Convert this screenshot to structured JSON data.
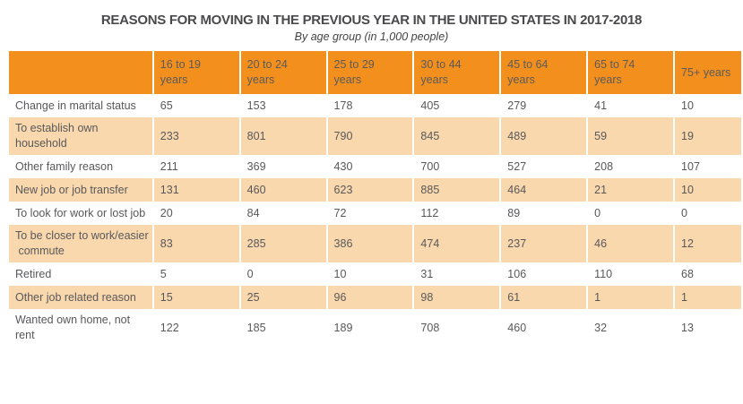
{
  "header": {
    "title": "REASONS FOR MOVING IN THE PREVIOUS YEAR IN THE UNITED STATES IN 2017-2018",
    "subtitle": "By age group (in 1,000 people)"
  },
  "colors": {
    "header_bg": "#f3901d",
    "row_alt_bg": "#fad8ad",
    "row_bg": "#ffffff",
    "text": "#58585b",
    "header_text": "#5a5a5c",
    "title": "#4a4a4c",
    "subtitle": "#434345"
  },
  "table": {
    "columns": [
      "",
      "16 to 19\nyears",
      "20 to 24\nyears",
      "25 to 29\nyears",
      "30 to 44\nyears",
      "45 to 64\nyears",
      "65 to 74\nyears",
      "75+ years"
    ],
    "rows": [
      {
        "label": "Change in marital status",
        "values": [
          "65",
          "153",
          "178",
          "405",
          "279",
          "41",
          "10"
        ]
      },
      {
        "label": "To establish own\nhousehold",
        "values": [
          "233",
          "801",
          "790",
          "845",
          "489",
          "59",
          "19"
        ]
      },
      {
        "label": "Other family reason",
        "values": [
          "211",
          "369",
          "430",
          "700",
          "527",
          "208",
          "107"
        ]
      },
      {
        "label": "New job or job transfer",
        "values": [
          "131",
          "460",
          "623",
          "885",
          "464",
          "21",
          "10"
        ]
      },
      {
        "label": "To look for work or lost job",
        "values": [
          "20",
          "84",
          "72",
          "112",
          "89",
          "0",
          "0"
        ]
      },
      {
        "label": "To be closer to work/easier\n commute",
        "values": [
          "83",
          "285",
          "386",
          "474",
          "237",
          "46",
          "12"
        ]
      },
      {
        "label": "Retired",
        "values": [
          "5",
          "0",
          "10",
          "31",
          "106",
          "110",
          "68"
        ]
      },
      {
        "label": "Other job related reason",
        "values": [
          "15",
          "25",
          "96",
          "98",
          "61",
          "1",
          "1"
        ]
      },
      {
        "label": "Wanted own home, not\nrent",
        "values": [
          "122",
          "185",
          "189",
          "708",
          "460",
          "32",
          "13"
        ]
      }
    ]
  },
  "chart_data": {
    "type": "table",
    "title": "REASONS FOR MOVING IN THE PREVIOUS YEAR IN THE UNITED STATES IN 2017-2018",
    "subtitle": "By age group (in 1,000 people)",
    "unit": "1,000 people",
    "categories": [
      "16 to 19 years",
      "20 to 24 years",
      "25 to 29 years",
      "30 to 44 years",
      "45 to 64 years",
      "65 to 74 years",
      "75+ years"
    ],
    "series": [
      {
        "name": "Change in marital status",
        "values": [
          65,
          153,
          178,
          405,
          279,
          41,
          10
        ]
      },
      {
        "name": "To establish own household",
        "values": [
          233,
          801,
          790,
          845,
          489,
          59,
          19
        ]
      },
      {
        "name": "Other family reason",
        "values": [
          211,
          369,
          430,
          700,
          527,
          208,
          107
        ]
      },
      {
        "name": "New job or job transfer",
        "values": [
          131,
          460,
          623,
          885,
          464,
          21,
          10
        ]
      },
      {
        "name": "To look for work or lost job",
        "values": [
          20,
          84,
          72,
          112,
          89,
          0,
          0
        ]
      },
      {
        "name": "To be closer to work/easier commute",
        "values": [
          83,
          285,
          386,
          474,
          237,
          46,
          12
        ]
      },
      {
        "name": "Retired",
        "values": [
          5,
          0,
          10,
          31,
          106,
          110,
          68
        ]
      },
      {
        "name": "Other job related reason",
        "values": [
          15,
          25,
          96,
          98,
          61,
          1,
          1
        ]
      },
      {
        "name": "Wanted own home, not rent",
        "values": [
          122,
          185,
          189,
          708,
          460,
          32,
          13
        ]
      }
    ]
  }
}
